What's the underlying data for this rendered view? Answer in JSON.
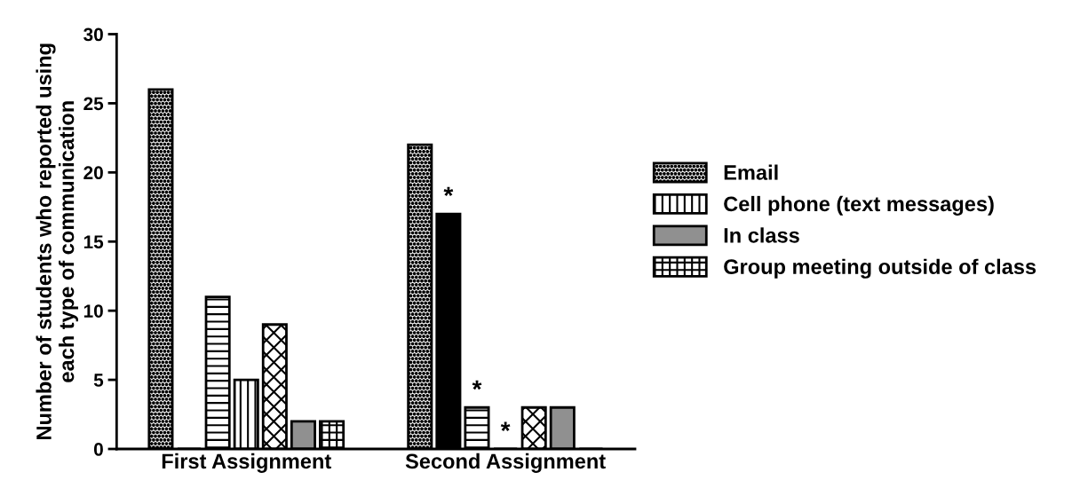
{
  "chart_data": {
    "type": "bar",
    "ylabel": "Number of students who reported using\neach type of communication",
    "categories": [
      "First Assignment",
      "Second Assignment"
    ],
    "series": [
      {
        "name": "Email",
        "color": "#000000",
        "values": [
          26,
          22
        ]
      },
      {
        "color": "#000000",
        "values": [
          0,
          17
        ]
      },
      {
        "color": "#000000",
        "values": [
          11,
          3
        ]
      },
      {
        "name": "Cell phone (text messages)",
        "color": "#000000",
        "values": [
          5,
          0
        ]
      },
      {
        "color": "#000000",
        "values": [
          9,
          3
        ]
      },
      {
        "name": "In class",
        "color": "#909090",
        "values": [
          2,
          3
        ]
      },
      {
        "name": "Group meeting outside of class",
        "color": "#000000",
        "values": [
          2,
          0
        ]
      }
    ],
    "ylim": [
      0,
      30
    ],
    "yticks": [
      0,
      5,
      10,
      15,
      20,
      25,
      30
    ],
    "grid": false,
    "legend": "right",
    "annotations": [
      "*",
      "*",
      "*"
    ]
  }
}
